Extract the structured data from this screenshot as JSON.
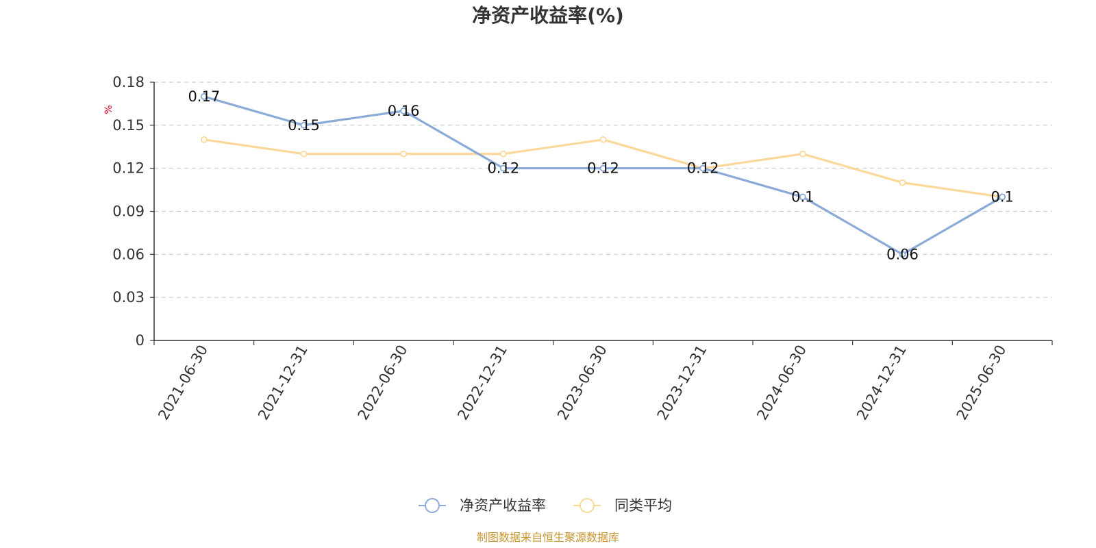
{
  "chart_data": {
    "type": "line",
    "title": "净资产收益率(%)",
    "ylabel": "%",
    "categories": [
      "2021-06-30",
      "2021-12-31",
      "2022-06-30",
      "2022-12-31",
      "2023-06-30",
      "2023-12-31",
      "2024-06-30",
      "2024-12-31",
      "2025-06-30"
    ],
    "ylim": [
      0,
      0.18
    ],
    "yticks": [
      "0",
      "0.03",
      "0.06",
      "0.09",
      "0.12",
      "0.15",
      "0.18"
    ],
    "grid": true,
    "legend_position": "bottom",
    "series": [
      {
        "name": "净资产收益率",
        "color": "#8aaad8",
        "values": [
          0.17,
          0.15,
          0.16,
          0.12,
          0.12,
          0.12,
          0.1,
          0.06,
          0.1
        ],
        "labels": [
          "0.17",
          "0.15",
          "0.16",
          "0.12",
          "0.12",
          "0.12",
          "0.1",
          "0.06",
          "0.1"
        ]
      },
      {
        "name": "同类平均",
        "color": "#fbd898",
        "values": [
          0.14,
          0.13,
          0.13,
          0.13,
          0.14,
          0.12,
          0.13,
          0.11,
          0.1
        ]
      }
    ]
  },
  "source_note": "制图数据来自恒生聚源数据库"
}
